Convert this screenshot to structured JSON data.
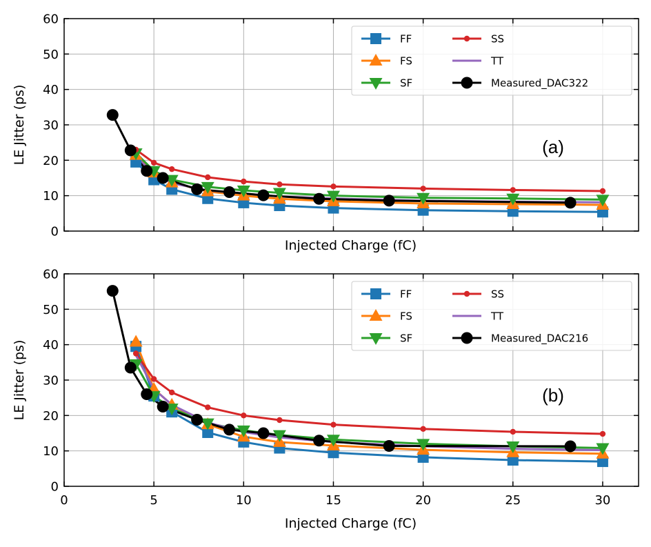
{
  "chart_data": [
    {
      "type": "line",
      "panel_label": "(a)",
      "xlabel": "Injected Charge (fC)",
      "ylabel": "LE Jitter (ps)",
      "xlim": [
        0,
        32
      ],
      "ylim": [
        0,
        60
      ],
      "xticks": [
        0,
        5,
        10,
        15,
        20,
        25,
        30
      ],
      "yticks": [
        0,
        10,
        20,
        30,
        40,
        50,
        60
      ],
      "show_xtick_labels": false,
      "grid": true,
      "legend_position": "top-right",
      "series": [
        {
          "name": "FF",
          "color": "#1f77b4",
          "marker": "square",
          "x": [
            4,
            5,
            6,
            8,
            10,
            12,
            15,
            20,
            25,
            30
          ],
          "y": [
            19.5,
            14.5,
            11.8,
            9.2,
            8.0,
            7.2,
            6.5,
            5.9,
            5.6,
            5.4
          ]
        },
        {
          "name": "FS",
          "color": "#ff7f0e",
          "marker": "triangle-up",
          "x": [
            4,
            5,
            6,
            8,
            10,
            12,
            15,
            20,
            25,
            30
          ],
          "y": [
            21.5,
            16.5,
            13.7,
            11.2,
            10.0,
            9.1,
            8.4,
            7.8,
            7.6,
            7.4
          ]
        },
        {
          "name": "SF",
          "color": "#2ca02c",
          "marker": "triangle-down",
          "x": [
            4,
            5,
            6,
            8,
            10,
            12,
            15,
            20,
            25,
            30
          ],
          "y": [
            22.0,
            17.0,
            14.5,
            12.5,
            11.5,
            10.8,
            10.0,
            9.4,
            9.2,
            8.9
          ]
        },
        {
          "name": "SS",
          "color": "#d62728",
          "marker": "dot",
          "x": [
            4,
            5,
            6,
            8,
            10,
            12,
            15,
            20,
            25,
            30
          ],
          "y": [
            23.0,
            19.3,
            17.5,
            15.2,
            14.0,
            13.2,
            12.6,
            12.0,
            11.6,
            11.3
          ]
        },
        {
          "name": "TT",
          "color": "#9467bd",
          "marker": "none",
          "x": [
            4,
            5,
            6,
            8,
            10,
            12,
            15,
            20,
            25,
            30
          ],
          "y": [
            21.0,
            16.2,
            13.5,
            11.5,
            10.6,
            9.8,
            9.2,
            8.6,
            8.3,
            8.1
          ]
        },
        {
          "name": "Measured_DAC322",
          "color": "#000000",
          "marker": "circle",
          "x": [
            2.7,
            3.7,
            4.6,
            5.5,
            7.4,
            9.2,
            11.1,
            14.2,
            18.1,
            28.2
          ],
          "y": [
            32.8,
            22.8,
            17.0,
            15.0,
            11.8,
            11.0,
            10.1,
            9.1,
            8.6,
            8.0
          ]
        }
      ]
    },
    {
      "type": "line",
      "panel_label": "(b)",
      "xlabel": "Injected Charge (fC)",
      "ylabel": "LE Jitter (ps)",
      "xlim": [
        0,
        32
      ],
      "ylim": [
        0,
        60
      ],
      "xticks": [
        0,
        5,
        10,
        15,
        20,
        25,
        30
      ],
      "yticks": [
        0,
        10,
        20,
        30,
        40,
        50,
        60
      ],
      "show_xtick_labels": true,
      "grid": true,
      "legend_position": "top-right",
      "series": [
        {
          "name": "FF",
          "color": "#1f77b4",
          "marker": "square",
          "x": [
            4,
            5,
            6,
            8,
            10,
            12,
            15,
            20,
            25,
            30
          ],
          "y": [
            39.5,
            25.5,
            21.0,
            15.2,
            12.5,
            10.8,
            9.5,
            8.2,
            7.4,
            7.0
          ]
        },
        {
          "name": "FS",
          "color": "#ff7f0e",
          "marker": "triangle-up",
          "x": [
            4,
            5,
            6,
            8,
            10,
            12,
            15,
            20,
            25,
            30
          ],
          "y": [
            40.8,
            27.5,
            23.0,
            17.5,
            14.0,
            12.5,
            11.5,
            10.3,
            9.6,
            9.2
          ]
        },
        {
          "name": "SF",
          "color": "#2ca02c",
          "marker": "triangle-down",
          "x": [
            4,
            5,
            6,
            8,
            10,
            12,
            15,
            20,
            25,
            30
          ],
          "y": [
            34.5,
            25.5,
            22.0,
            17.8,
            15.8,
            14.5,
            13.2,
            12.0,
            11.3,
            10.8
          ]
        },
        {
          "name": "SS",
          "color": "#d62728",
          "marker": "dot",
          "x": [
            4,
            5,
            6,
            8,
            10,
            12,
            15,
            20,
            25,
            30
          ],
          "y": [
            37.5,
            30.3,
            26.5,
            22.3,
            20.0,
            18.7,
            17.4,
            16.2,
            15.4,
            14.8
          ]
        },
        {
          "name": "TT",
          "color": "#9467bd",
          "marker": "none",
          "x": [
            4,
            5,
            6,
            8,
            10,
            12,
            15,
            20,
            25,
            30
          ],
          "y": [
            37.0,
            27.5,
            23.0,
            18.0,
            15.3,
            13.8,
            12.5,
            11.3,
            10.6,
            10.2
          ]
        },
        {
          "name": "Measured_DAC216",
          "color": "#000000",
          "marker": "circle",
          "x": [
            2.7,
            3.7,
            4.6,
            5.5,
            7.4,
            9.2,
            11.1,
            14.2,
            18.1,
            28.2
          ],
          "y": [
            55.2,
            33.5,
            26.0,
            22.5,
            18.8,
            16.0,
            15.0,
            12.9,
            11.4,
            11.3
          ]
        }
      ]
    }
  ]
}
